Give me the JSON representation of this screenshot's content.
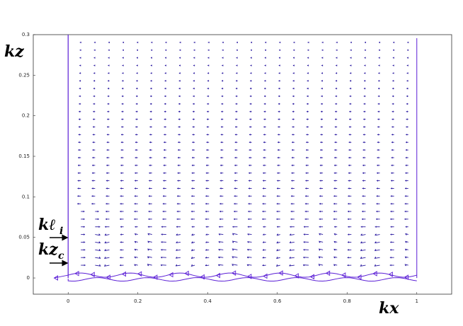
{
  "chart_data": {
    "type": "quiver",
    "xlabel": "kx",
    "ylabel": "kz",
    "xlim": [
      -0.1,
      1.1
    ],
    "ylim": [
      -0.02,
      0.3
    ],
    "xticks": [
      0,
      0.2,
      0.4,
      0.6,
      0.8,
      1
    ],
    "yticks": [
      0,
      0.05,
      0.1,
      0.15,
      0.2,
      0.25,
      0.3
    ],
    "annotations": [
      {
        "text": "kℓ",
        "sub": "i"
      },
      {
        "text": "kz",
        "sub": "c"
      }
    ],
    "color": "#5b1fd6"
  }
}
